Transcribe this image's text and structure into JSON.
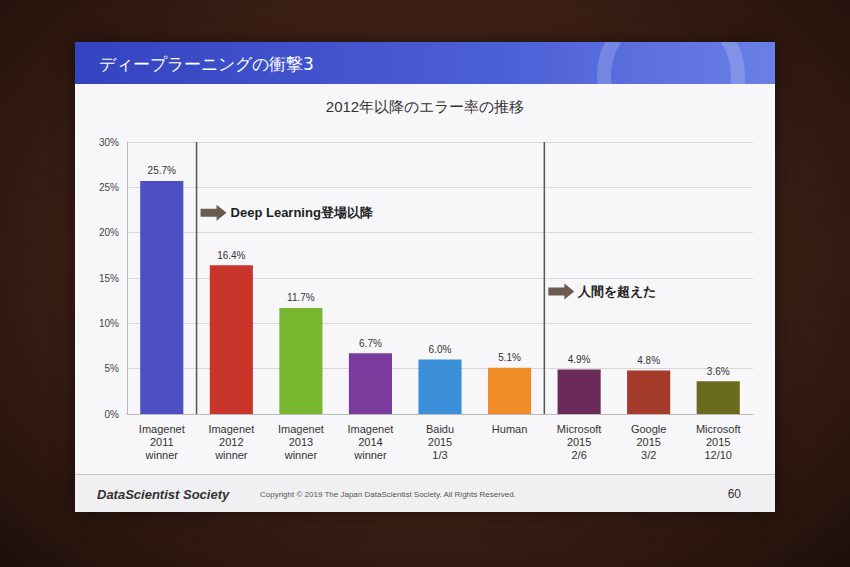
{
  "slide": {
    "title": "ディープラーニングの衝撃3",
    "footer_brand": "DataScientist Society",
    "copyright": "Copyright © 2019 The Japan DataScientist Society. All Rights Reserved.",
    "page": 60
  },
  "chart_data": {
    "type": "bar",
    "title": "2012年以降のエラー率の推移",
    "categories": [
      "Imagenet\n2011\nwinner",
      "Imagenet\n2012\nwinner",
      "Imagenet\n2013\nwinner",
      "Imagenet\n2014\nwinner",
      "Baidu\n2015\n1/3",
      "Human",
      "Microsoft\n2015\n2/6",
      "Google\n2015\n3/2",
      "Microsoft\n2015\n12/10"
    ],
    "values": [
      25.7,
      16.4,
      11.7,
      6.7,
      6.0,
      5.1,
      4.9,
      4.8,
      3.6
    ],
    "value_labels": [
      "25.7%",
      "16.4%",
      "11.7%",
      "6.7%",
      "6.0%",
      "5.1%",
      "4.9%",
      "4.8%",
      "3.6%"
    ],
    "colors": [
      "#4f4fc4",
      "#c8352a",
      "#7ab730",
      "#7a3c9c",
      "#3a8fd8",
      "#f08c28",
      "#6b2b58",
      "#a33a2a",
      "#6b6b1e"
    ],
    "ylim": [
      0,
      30
    ],
    "yticks": [
      {
        "value": 0,
        "label": "0%"
      },
      {
        "value": 5,
        "label": "5%"
      },
      {
        "value": 10,
        "label": "10%"
      },
      {
        "value": 15,
        "label": "15%"
      },
      {
        "value": 20,
        "label": "20%"
      },
      {
        "value": 25,
        "label": "25%"
      },
      {
        "value": 30,
        "label": "30%"
      }
    ],
    "grid": true,
    "data_labels": true,
    "annotations": [
      {
        "text": "Deep Learning登場以降",
        "before": "Imagenet\n2012\nwinner"
      },
      {
        "text": "人間を超えた",
        "before": "Microsoft\n2015\n2/6"
      }
    ]
  }
}
